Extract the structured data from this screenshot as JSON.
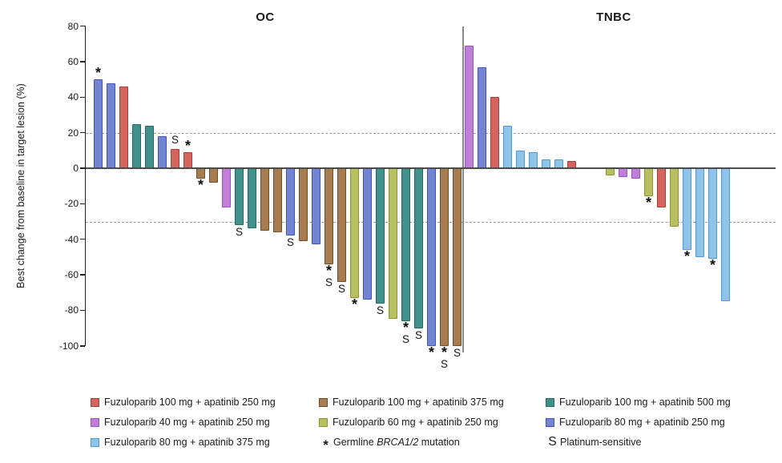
{
  "chart_data": {
    "type": "bar",
    "subtype": "waterfall",
    "ylabel": "Best change from baseline in target lesion (%)",
    "ylim": [
      -100,
      80
    ],
    "yticks": [
      80,
      60,
      40,
      20,
      0,
      -20,
      -40,
      -60,
      -80,
      -100
    ],
    "reference_lines": [
      20,
      -30
    ],
    "grid": false,
    "marker_meanings": {
      "*": "Germline BRCA1/2 mutation",
      "S": "Platinum-sensitive"
    },
    "groups": {
      "fz100_ap250": {
        "label": "Fuzuloparib 100 mg + apatinib 250 mg",
        "fill": "#d3655f",
        "border": "#a73e3a"
      },
      "fz40_ap250": {
        "label": "Fuzuloparib 40 mg + apatinib 250 mg",
        "fill": "#bd80d5",
        "border": "#9c52c6"
      },
      "fz80_ap375": {
        "label": "Fuzuloparib 80 mg + apatinib 375 mg",
        "fill": "#8fc3ea",
        "border": "#4d96d9"
      },
      "fz100_ap375": {
        "label": "Fuzuloparib 100 mg + apatinib 375 mg",
        "fill": "#a67c50",
        "border": "#6e5027"
      },
      "fz60_ap250": {
        "label": "Fuzuloparib 60 mg + apatinib 250 mg",
        "fill": "#b8be62",
        "border": "#8e9430"
      },
      "fz100_ap500": {
        "label": "Fuzuloparib 100 mg + apatinib 500 mg",
        "fill": "#41918a",
        "border": "#206a60"
      },
      "fz80_ap250": {
        "label": "Fuzuloparib 80 mg + apatinib 250 mg",
        "fill": "#7484d3",
        "border": "#4353be"
      }
    },
    "panels": [
      {
        "title": "OC",
        "bars": [
          {
            "value": 50,
            "group": "fz80_ap250",
            "marks": [
              "*"
            ]
          },
          {
            "value": 48,
            "group": "fz80_ap250",
            "marks": []
          },
          {
            "value": 46,
            "group": "fz100_ap250",
            "marks": []
          },
          {
            "value": 25,
            "group": "fz100_ap500",
            "marks": []
          },
          {
            "value": 24,
            "group": "fz100_ap500",
            "marks": []
          },
          {
            "value": 18,
            "group": "fz80_ap250",
            "marks": []
          },
          {
            "value": 11,
            "group": "fz100_ap250",
            "marks": [
              "S"
            ]
          },
          {
            "value": 9,
            "group": "fz100_ap250",
            "marks": [
              "*"
            ]
          },
          {
            "value": -6,
            "group": "fz100_ap375",
            "marks": [
              "*"
            ]
          },
          {
            "value": -8,
            "group": "fz100_ap375",
            "marks": []
          },
          {
            "value": -22,
            "group": "fz40_ap250",
            "marks": []
          },
          {
            "value": -32,
            "group": "fz100_ap500",
            "marks": [
              "S"
            ]
          },
          {
            "value": -34,
            "group": "fz100_ap500",
            "marks": []
          },
          {
            "value": -35,
            "group": "fz100_ap375",
            "marks": []
          },
          {
            "value": -36,
            "group": "fz100_ap375",
            "marks": []
          },
          {
            "value": -38,
            "group": "fz80_ap250",
            "marks": [
              "S"
            ]
          },
          {
            "value": -41,
            "group": "fz100_ap375",
            "marks": []
          },
          {
            "value": -43,
            "group": "fz80_ap250",
            "marks": []
          },
          {
            "value": -54,
            "group": "fz100_ap375",
            "marks": [
              "*",
              "S"
            ]
          },
          {
            "value": -64,
            "group": "fz100_ap375",
            "marks": [
              "S"
            ]
          },
          {
            "value": -73,
            "group": "fz60_ap250",
            "marks": [
              "*"
            ]
          },
          {
            "value": -74,
            "group": "fz80_ap250",
            "marks": []
          },
          {
            "value": -76,
            "group": "fz100_ap500",
            "marks": [
              "S"
            ]
          },
          {
            "value": -85,
            "group": "fz60_ap250",
            "marks": []
          },
          {
            "value": -86,
            "group": "fz100_ap500",
            "marks": [
              "*",
              "S"
            ]
          },
          {
            "value": -90,
            "group": "fz100_ap500",
            "marks": [
              "S"
            ]
          },
          {
            "value": -100,
            "group": "fz80_ap250",
            "marks": [
              "*"
            ]
          },
          {
            "value": -100,
            "group": "fz100_ap375",
            "marks": [
              "*",
              "S"
            ]
          },
          {
            "value": -100,
            "group": "fz100_ap375",
            "marks": [
              "S"
            ]
          }
        ]
      },
      {
        "title": "TNBC",
        "bars": [
          {
            "value": 69,
            "group": "fz40_ap250",
            "marks": []
          },
          {
            "value": 57,
            "group": "fz80_ap250",
            "marks": []
          },
          {
            "value": 40,
            "group": "fz100_ap250",
            "marks": []
          },
          {
            "value": 24,
            "group": "fz80_ap375",
            "marks": []
          },
          {
            "value": 10,
            "group": "fz80_ap375",
            "marks": []
          },
          {
            "value": 9,
            "group": "fz80_ap375",
            "marks": []
          },
          {
            "value": 5,
            "group": "fz80_ap375",
            "marks": []
          },
          {
            "value": 5,
            "group": "fz80_ap375",
            "marks": []
          },
          {
            "value": 4,
            "group": "fz100_ap250",
            "marks": []
          },
          {
            "value": 0,
            "group": null,
            "marks": []
          },
          {
            "value": 0,
            "group": null,
            "marks": []
          },
          {
            "value": -4,
            "group": "fz60_ap250",
            "marks": []
          },
          {
            "value": -5,
            "group": "fz40_ap250",
            "marks": []
          },
          {
            "value": -6,
            "group": "fz40_ap250",
            "marks": []
          },
          {
            "value": -16,
            "group": "fz60_ap250",
            "marks": [
              "*"
            ]
          },
          {
            "value": -22,
            "group": "fz100_ap250",
            "marks": []
          },
          {
            "value": -33,
            "group": "fz60_ap250",
            "marks": []
          },
          {
            "value": -46,
            "group": "fz80_ap375",
            "marks": [
              "*"
            ]
          },
          {
            "value": -50,
            "group": "fz80_ap375",
            "marks": []
          },
          {
            "value": -51,
            "group": "fz80_ap375",
            "marks": [
              "*"
            ]
          },
          {
            "value": -75,
            "group": "fz80_ap375",
            "marks": []
          }
        ]
      }
    ],
    "legend_columns": [
      [
        {
          "type": "swatch",
          "group": "fz100_ap250"
        },
        {
          "type": "swatch",
          "group": "fz40_ap250"
        },
        {
          "type": "swatch",
          "group": "fz80_ap375"
        }
      ],
      [
        {
          "type": "swatch",
          "group": "fz100_ap375"
        },
        {
          "type": "swatch",
          "group": "fz60_ap250"
        },
        {
          "type": "symbol",
          "symbol": "*",
          "label_pre": "Germline ",
          "label_italic": "BRCA1/2",
          "label_post": " mutation"
        }
      ],
      [
        {
          "type": "swatch",
          "group": "fz100_ap500"
        },
        {
          "type": "swatch",
          "group": "fz80_ap250"
        },
        {
          "type": "symbol",
          "symbol": "S",
          "label": "Platinum-sensitive"
        }
      ]
    ]
  }
}
